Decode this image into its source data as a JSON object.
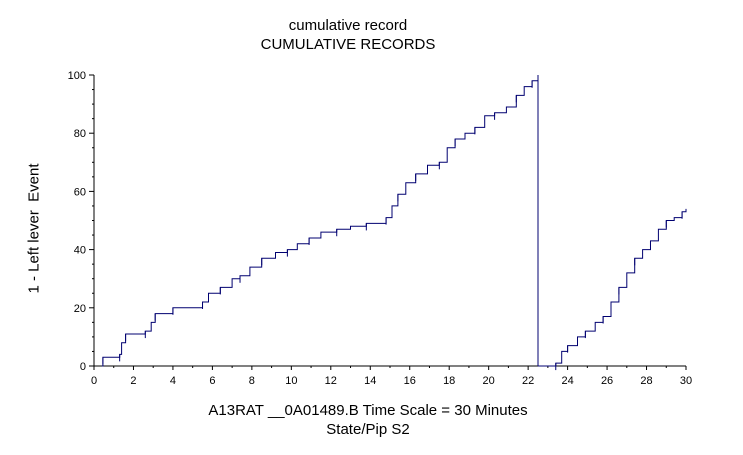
{
  "chart_data": {
    "type": "line",
    "title": "cumulative record",
    "subtitle": "CUMULATIVE RECORDS",
    "xlabel": "A13RAT __0A01489.B   Time Scale = 30 Minutes",
    "xlabel2": "State/Pip S2",
    "ylabel": "1 - Left lever  Event",
    "xlim": [
      0,
      30
    ],
    "ylim": [
      0,
      100
    ],
    "xticks": [
      "0",
      "2",
      "4",
      "6",
      "8",
      "10",
      "12",
      "14",
      "16",
      "18",
      "20",
      "22",
      "24",
      "26",
      "28",
      "30"
    ],
    "yticks": [
      "0",
      "20",
      "40",
      "60",
      "80",
      "100"
    ],
    "line_color": "#000070",
    "reset_at_x": 22.5,
    "series": [
      {
        "values": [
          [
            0.4,
            0
          ],
          [
            0.45,
            3
          ],
          [
            1.0,
            3
          ],
          [
            1.3,
            4
          ],
          [
            1.4,
            8
          ],
          [
            1.6,
            11
          ],
          [
            2.2,
            11
          ],
          [
            2.6,
            12
          ],
          [
            2.9,
            15
          ],
          [
            3.1,
            18
          ],
          [
            3.6,
            18
          ],
          [
            4.0,
            20
          ],
          [
            5.0,
            20
          ],
          [
            5.5,
            22
          ],
          [
            5.8,
            25
          ],
          [
            6.4,
            27
          ],
          [
            7.0,
            30
          ],
          [
            7.4,
            31
          ],
          [
            7.9,
            34
          ],
          [
            8.5,
            37
          ],
          [
            9.2,
            39
          ],
          [
            9.8,
            40
          ],
          [
            10.3,
            42
          ],
          [
            10.9,
            44
          ],
          [
            11.5,
            46
          ],
          [
            12.3,
            47
          ],
          [
            13.0,
            48
          ],
          [
            13.8,
            49
          ],
          [
            14.5,
            49
          ],
          [
            14.8,
            51
          ],
          [
            15.1,
            55
          ],
          [
            15.4,
            59
          ],
          [
            15.8,
            63
          ],
          [
            16.3,
            66
          ],
          [
            16.9,
            69
          ],
          [
            17.5,
            70
          ],
          [
            17.9,
            75
          ],
          [
            18.3,
            78
          ],
          [
            18.8,
            80
          ],
          [
            19.3,
            82
          ],
          [
            19.8,
            86
          ],
          [
            20.3,
            87
          ],
          [
            20.9,
            89
          ],
          [
            21.4,
            93
          ],
          [
            21.8,
            96
          ],
          [
            22.2,
            98
          ],
          [
            22.5,
            100
          ]
        ]
      },
      {
        "values": [
          [
            22.5,
            0
          ],
          [
            23.4,
            1
          ],
          [
            23.7,
            5
          ],
          [
            24.0,
            7
          ],
          [
            24.5,
            10
          ],
          [
            24.9,
            12
          ],
          [
            25.4,
            15
          ],
          [
            25.8,
            17
          ],
          [
            26.2,
            22
          ],
          [
            26.6,
            27
          ],
          [
            27.0,
            32
          ],
          [
            27.4,
            37
          ],
          [
            27.8,
            40
          ],
          [
            28.2,
            43
          ],
          [
            28.6,
            47
          ],
          [
            29.0,
            50
          ],
          [
            29.4,
            51
          ],
          [
            29.8,
            53
          ],
          [
            30.0,
            54
          ]
        ]
      }
    ]
  }
}
